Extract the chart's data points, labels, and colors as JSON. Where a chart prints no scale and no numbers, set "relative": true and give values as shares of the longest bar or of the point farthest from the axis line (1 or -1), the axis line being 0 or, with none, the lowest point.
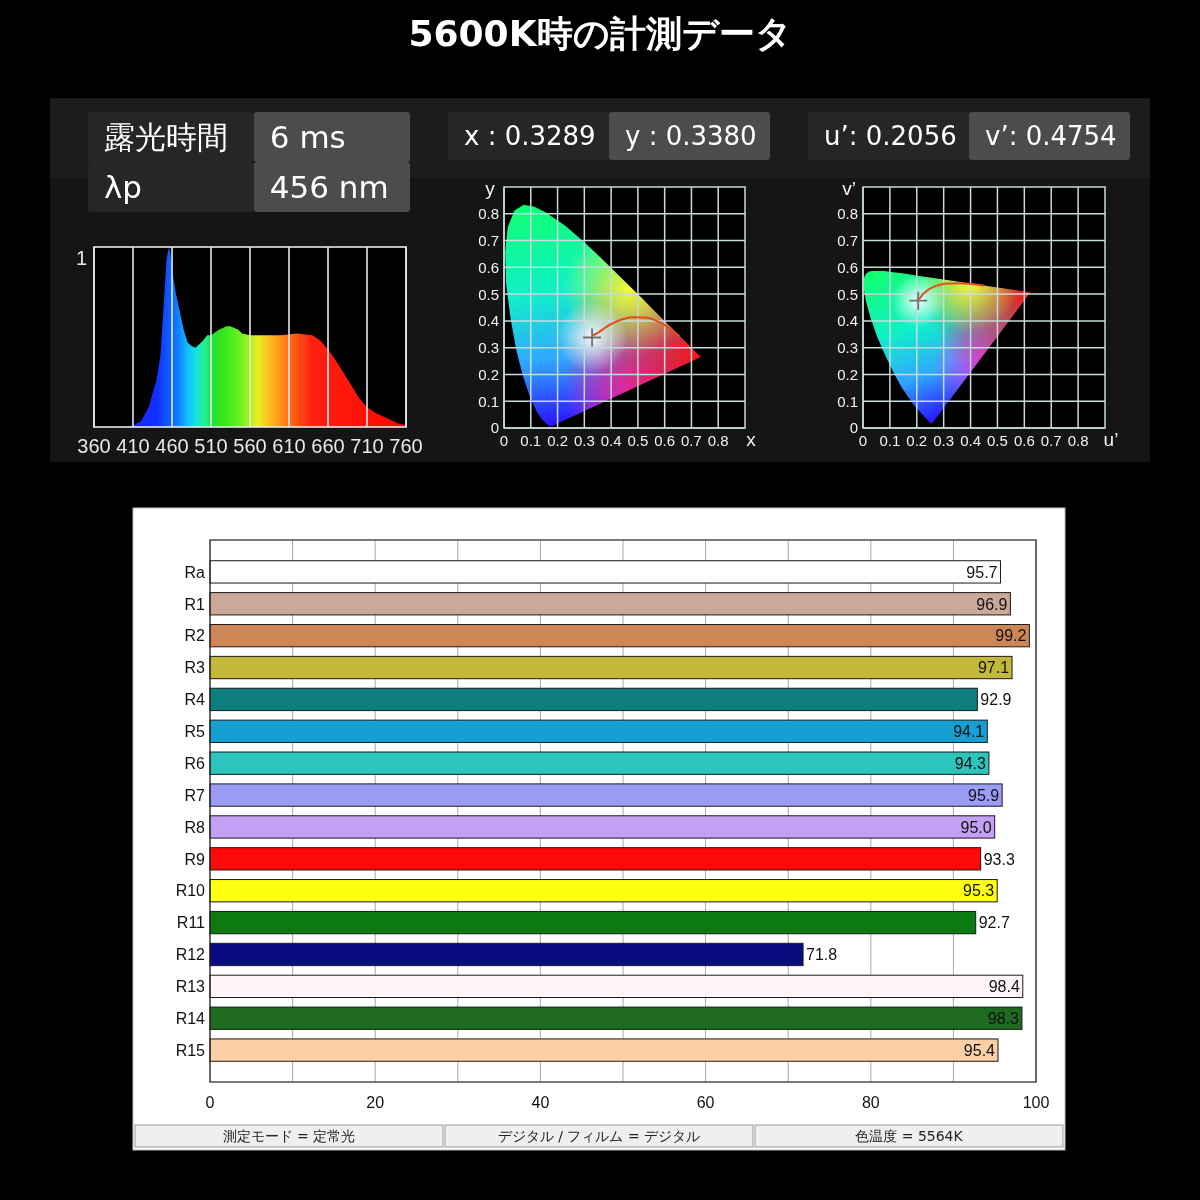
{
  "chart_data": [
    {
      "type": "other",
      "title": "5600K時の計測データ"
    },
    {
      "type": "area",
      "x": [
        405,
        410,
        420,
        430,
        440,
        445,
        450,
        453,
        456,
        458,
        461,
        465,
        470,
        475,
        480,
        485,
        490,
        495,
        500,
        505,
        510,
        520,
        530,
        535,
        540,
        545,
        550,
        560,
        580,
        600,
        620,
        640,
        650,
        660,
        670,
        680,
        690,
        700,
        710,
        720,
        730,
        740,
        750,
        760
      ],
      "values": [
        0,
        0.01,
        0.03,
        0.11,
        0.26,
        0.39,
        0.72,
        0.93,
        1,
        0.96,
        0.85,
        0.74,
        0.64,
        0.54,
        0.47,
        0.45,
        0.44,
        0.46,
        0.48,
        0.51,
        0.51,
        0.54,
        0.56,
        0.56,
        0.55,
        0.54,
        0.52,
        0.51,
        0.51,
        0.51,
        0.52,
        0.51,
        0.48,
        0.43,
        0.37,
        0.3,
        0.23,
        0.16,
        0.11,
        0.08,
        0.06,
        0.04,
        0.02,
        0.01
      ],
      "relative": true,
      "xlim": [
        360,
        760
      ],
      "xticks": [
        360,
        410,
        460,
        510,
        560,
        610,
        660,
        710,
        760
      ],
      "grid": "x",
      "annotations": [
        "露光時間",
        "6 ms",
        "λp",
        "456 nm",
        "1"
      ]
    },
    {
      "type": "scatter",
      "xlabel": "x",
      "ylabel": "y",
      "xlim": [
        0,
        0.9
      ],
      "ylim": [
        0,
        0.9
      ],
      "xticks": [
        0,
        0.1,
        0.2,
        0.3,
        0.4,
        0.5,
        0.6,
        0.7,
        0.8
      ],
      "yticks": [
        0,
        0.1,
        0.2,
        0.3,
        0.4,
        0.5,
        0.6,
        0.7,
        0.8
      ],
      "grid": true,
      "annotations": [
        "x : 0.3289",
        "y : 0.3380"
      ],
      "series": [
        {
          "type": "area",
          "x": [
            0.174,
            0.171,
            0.164,
            0.157,
            0.144,
            0.124,
            0.11,
            0.091,
            0.069,
            0.045,
            0.024,
            0.008,
            0.004,
            0.014,
            0.039,
            0.074,
            0.114,
            0.155,
            0.23,
            0.302,
            0.373,
            0.444,
            0.513,
            0.575,
            0.627,
            0.692,
            0.719,
            0.735,
            0.174
          ],
          "values": [
            0.005,
            0.005,
            0.011,
            0.018,
            0.03,
            0.058,
            0.087,
            0.133,
            0.201,
            0.295,
            0.413,
            0.538,
            0.655,
            0.75,
            0.812,
            0.834,
            0.826,
            0.806,
            0.754,
            0.692,
            0.625,
            0.555,
            0.487,
            0.424,
            0.373,
            0.308,
            0.281,
            0.265,
            0.005
          ]
        },
        {
          "type": "line",
          "color": "#e0501e",
          "x": [
            0.332,
            0.345,
            0.381,
            0.405,
            0.437,
            0.477,
            0.527,
            0.586,
            0.653
          ],
          "values": [
            0.347,
            0.352,
            0.377,
            0.391,
            0.404,
            0.414,
            0.413,
            0.393,
            0.344
          ]
        },
        {
          "type": "scatter",
          "marker": "cross",
          "color": "#707070",
          "x": [
            0.3289
          ],
          "values": [
            0.338
          ]
        }
      ]
    },
    {
      "type": "scatter",
      "xlabel": "u’",
      "ylabel": "v’",
      "xlim": [
        0,
        0.9
      ],
      "ylim": [
        0,
        0.9
      ],
      "xticks": [
        0,
        0.1,
        0.2,
        0.3,
        0.4,
        0.5,
        0.6,
        0.7,
        0.8
      ],
      "yticks": [
        0,
        0.1,
        0.2,
        0.3,
        0.4,
        0.5,
        0.6,
        0.7,
        0.8
      ],
      "grid": true,
      "annotations": [
        "u’: 0.2056",
        "v’: 0.4754"
      ],
      "series": [
        {
          "type": "area",
          "x": [
            0.257,
            0.252,
            0.235,
            0.216,
            0.188,
            0.144,
            0.115,
            0.083,
            0.052,
            0.028,
            0.012,
            0.004,
            0.001,
            0.005,
            0.012,
            0.023,
            0.036,
            0.05,
            0.079,
            0.113,
            0.153,
            0.203,
            0.262,
            0.332,
            0.404,
            0.52,
            0.583,
            0.623,
            0.257
          ],
          "values": [
            0.017,
            0.017,
            0.035,
            0.055,
            0.087,
            0.151,
            0.204,
            0.271,
            0.343,
            0.412,
            0.47,
            0.513,
            0.543,
            0.564,
            0.577,
            0.584,
            0.586,
            0.587,
            0.586,
            0.582,
            0.577,
            0.569,
            0.56,
            0.55,
            0.539,
            0.522,
            0.513,
            0.507,
            0.017
          ]
        },
        {
          "type": "line",
          "color": "#e0501e",
          "x": [
            0.204,
            0.211,
            0.225,
            0.236,
            0.251,
            0.272,
            0.305,
            0.358,
            0.448
          ],
          "values": [
            0.481,
            0.485,
            0.502,
            0.511,
            0.521,
            0.531,
            0.539,
            0.541,
            0.532
          ]
        },
        {
          "type": "scatter",
          "marker": "cross",
          "color": "#707070",
          "x": [
            0.2056
          ],
          "values": [
            0.4754
          ]
        }
      ]
    },
    {
      "type": "bar",
      "orientation": "horizontal",
      "categories": [
        "Ra",
        "R1",
        "R2",
        "R3",
        "R4",
        "R5",
        "R6",
        "R7",
        "R8",
        "R9",
        "R10",
        "R11",
        "R12",
        "R13",
        "R14",
        "R15"
      ],
      "values": [
        95.7,
        96.9,
        99.2,
        97.1,
        92.9,
        94.1,
        94.3,
        95.9,
        95.0,
        93.3,
        95.3,
        92.7,
        71.8,
        98.4,
        98.3,
        95.4
      ],
      "value_labels": [
        "95.7",
        "96.9",
        "99.2",
        "97.1",
        "92.9",
        "94.1",
        "94.3",
        "95.9",
        "95.0",
        "93.3",
        "95.3",
        "92.7",
        "71.8",
        "98.4",
        "98.3",
        "95.4"
      ],
      "colors": [
        "#ffffff",
        "#caa89a",
        "#cd8656",
        "#c4b83a",
        "#0e7d7e",
        "#14a0d2",
        "#2cc4bc",
        "#9a9cf6",
        "#c4a0f4",
        "#ff0a0a",
        "#ffff10",
        "#0c7a10",
        "#080c80",
        "#fff4fa",
        "#1e6a20",
        "#fcd0a4"
      ],
      "xlim": [
        0,
        100
      ],
      "xticks": [
        0,
        {
          "value": 10,
          "label": null
        },
        20,
        {
          "value": 30,
          "label": null
        },
        40,
        {
          "value": 50,
          "label": null
        },
        60,
        {
          "value": 70,
          "label": null
        },
        80,
        {
          "value": 90,
          "label": null
        },
        100
      ],
      "grid": "x",
      "annotations": [
        "測定モード = 定常光",
        "デジタル / フィルム = デジタル",
        "色温度 = 5564K"
      ]
    }
  ]
}
